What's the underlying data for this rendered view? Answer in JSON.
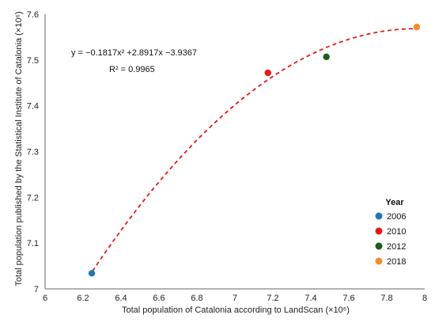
{
  "chart_data": {
    "type": "scatter",
    "xlabel": "Total population of Catalonia according to LandScan (×10⁶)",
    "ylabel": "Total population published by the Statistical Institute of Catalonia (×10⁶)",
    "xlim": [
      6,
      8
    ],
    "ylim": [
      7,
      7.6
    ],
    "x_ticks": [
      "6",
      "6.2",
      "6.4",
      "6.6",
      "6.8",
      "7",
      "7.2",
      "7.4",
      "7.6",
      "7.8",
      "8"
    ],
    "y_ticks": [
      "7",
      "7.1",
      "7.2",
      "7.3",
      "7.4",
      "7.5",
      "7.6"
    ],
    "grid": false,
    "legend": {
      "title": "Year",
      "position": "bottom-right"
    },
    "series": [
      {
        "name": "2006",
        "color": "#1f77b4",
        "x": [
          6.246
        ],
        "y": [
          7.034
        ]
      },
      {
        "name": "2010",
        "color": "#e31a1c",
        "x": [
          7.174
        ],
        "y": [
          7.472
        ]
      },
      {
        "name": "2012",
        "color": "#1a5e1a",
        "x": [
          7.482
        ],
        "y": [
          7.507
        ]
      },
      {
        "name": "2018",
        "color": "#f28e2b",
        "x": [
          7.958
        ],
        "y": [
          7.572
        ]
      }
    ],
    "trendline": {
      "type": "polynomial",
      "coefficients": [
        -0.1817,
        2.8917,
        -3.9367
      ],
      "x_range": [
        6.25,
        7.96
      ],
      "color": "#e31a1c",
      "style": "dashed"
    },
    "annotations": {
      "equation": "y = −0.1817x² +2.8917x −3.9367",
      "r_squared": "R² = 0.9965"
    }
  }
}
